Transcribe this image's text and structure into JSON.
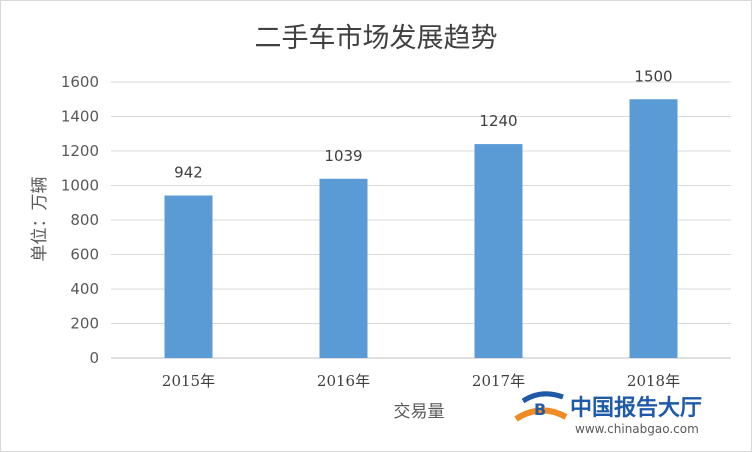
{
  "chart_data": {
    "type": "bar",
    "title": "二手车市场发展趋势",
    "xlabel": "交易量",
    "ylabel": "单位：万辆",
    "categories": [
      "2015年",
      "2016年",
      "2017年",
      "2018年"
    ],
    "series": [
      {
        "values": [
          942,
          1039,
          1240,
          1500
        ]
      }
    ],
    "data_labels": [
      "942",
      "1039",
      "1240",
      "1500"
    ],
    "ylim": [
      0,
      1600
    ],
    "yticks": [
      0,
      200,
      400,
      600,
      800,
      1000,
      1200,
      1400,
      1600
    ],
    "bar_color": "#5b9bd5",
    "grid": true,
    "legend": "none"
  },
  "watermark": {
    "logo_text": "中国报告大厅",
    "url": "www.chinabgao.com"
  }
}
